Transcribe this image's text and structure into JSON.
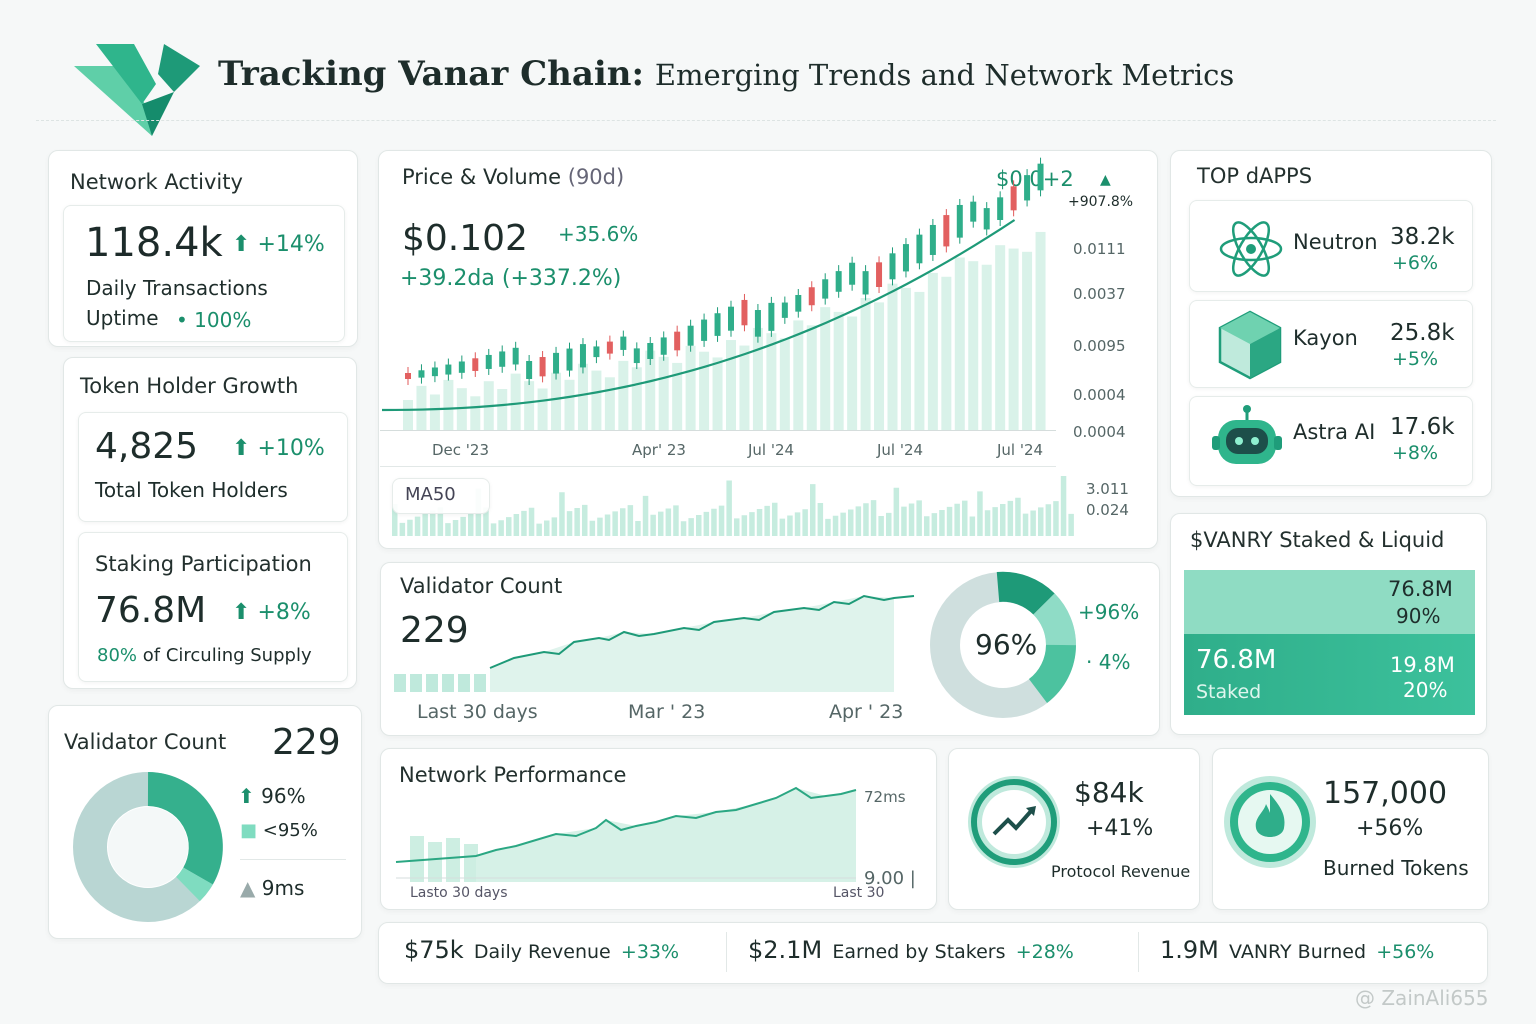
{
  "header": {
    "title_bold": "Tracking Vanar Chain:",
    "title_rest": "Emerging Trends and Network Metrics"
  },
  "network_activity": {
    "title": "Network Activity",
    "value": "118.4k",
    "change": "+14%",
    "label": "Daily Transactions",
    "uptime_label": "Uptime",
    "uptime_value": "100%"
  },
  "token_holders": {
    "title": "Token Holder Growth",
    "value": "4,825",
    "change": "+10%",
    "label": "Total Token Holders"
  },
  "staking": {
    "title": "Staking Participation",
    "value": "76.8M",
    "change": "+8%",
    "pct": "80%",
    "label": "of Circuling Supply"
  },
  "validator_left": {
    "title": "Validator Count",
    "value": "229",
    "items": [
      "96%",
      "<95%",
      "9ms"
    ]
  },
  "price": {
    "title": "Price & Volume",
    "period": "(90d)",
    "price": "$0.102",
    "change": "+35.6%",
    "sub": "+39.2da (+337.2%)",
    "top_value": "$0.0+2",
    "top_change": "+907.8%",
    "y_labels": [
      "0.0111",
      "0.0037",
      "0.0095",
      "0.0004",
      "0.0004"
    ],
    "x_labels": [
      "Dec '23",
      "Apr' 23",
      "Jul '24",
      "Jul '24",
      "Jul '24"
    ],
    "ma": "MA50",
    "vol_labels": [
      "3.011",
      "0.024"
    ]
  },
  "validator_mid": {
    "title": "Validator Count",
    "value": "229",
    "x_labels": [
      "Last 30 days",
      "Mar ' 23",
      "Apr ' 23"
    ],
    "donut_center": "96%",
    "donut_labels": [
      "+96%",
      "4%"
    ]
  },
  "dapps": {
    "title": "TOP dAPPS",
    "items": [
      {
        "name": "Neutron",
        "value": "38.2k",
        "change": "+6%"
      },
      {
        "name": "Kayon",
        "value": "25.8k",
        "change": "+5%"
      },
      {
        "name": "Astra AI",
        "value": "17.6k",
        "change": "+8%"
      }
    ]
  },
  "staked": {
    "title": "$VANRY Staked & Liquid",
    "liquid_value": "76.8M",
    "liquid_pct": "90%",
    "staked_value": "76.8M",
    "staked_label": "Staked",
    "other_value": "19.8M",
    "other_pct": "20%"
  },
  "performance": {
    "title": "Network Performance",
    "top": "72ms",
    "bottom": "9.00",
    "x_labels": [
      "Lasto 30 days",
      "Last 30"
    ]
  },
  "revenue": {
    "value": "$84k",
    "change": "+41%",
    "label": "Protocol Revenue"
  },
  "burned": {
    "value": "157,000",
    "change": "+56%",
    "label": "Burned Tokens"
  },
  "footer": [
    {
      "value": "$75k",
      "label": "Daily Revenue",
      "change": "+33%"
    },
    {
      "value": "$2.1M",
      "label": "Earned by Stakers",
      "change": "+28%"
    },
    {
      "value": "1.9M",
      "label": "VANRY Burned",
      "change": "+56%"
    }
  ],
  "watermark": "@ ZainAli655"
}
